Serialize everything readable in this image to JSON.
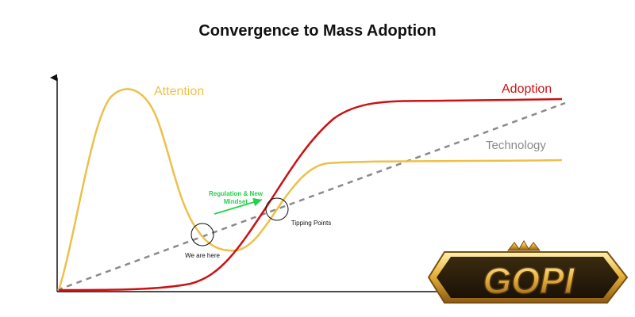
{
  "title": "Convergence to Mass Adoption",
  "colors": {
    "attention": "#ecc04a",
    "adoption": "#cc1111",
    "technology": "#8a8a8a",
    "arrow": "#22d24a",
    "axis": "#111111",
    "logo_gold": "#e8b33c",
    "logo_dark": "#5a3b10"
  },
  "labels": {
    "attention": "Attention",
    "adoption": "Adoption",
    "technology": "Technology",
    "regulation": [
      "Regulation & New",
      "Mindset"
    ],
    "we_are_here": "We are here",
    "tipping": "Tipping Points"
  },
  "logo": {
    "text": "GOPI"
  }
}
